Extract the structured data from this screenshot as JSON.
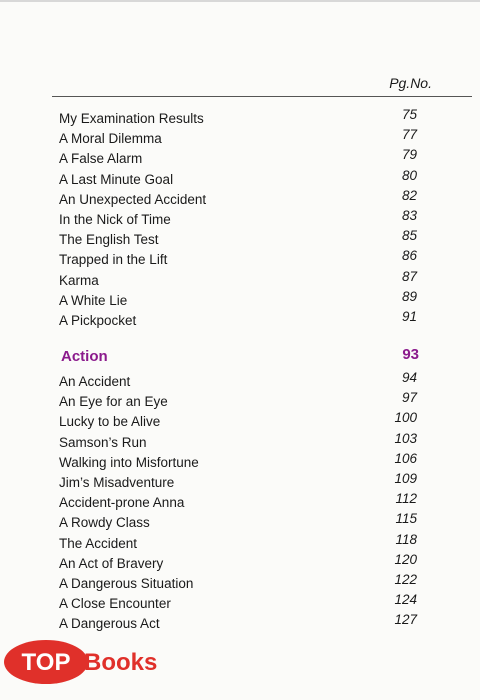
{
  "header": {
    "page_column": "Pg.No."
  },
  "entries": [
    {
      "title": "My Examination Results",
      "page": 75
    },
    {
      "title": "A Moral Dilemma",
      "page": 77
    },
    {
      "title": "A False Alarm",
      "page": 79
    },
    {
      "title": "A Last Minute Goal",
      "page": 80
    },
    {
      "title": "An Unexpected Accident",
      "page": 82
    },
    {
      "title": "In the Nick of Time",
      "page": 83
    },
    {
      "title": "The English Test",
      "page": 85
    },
    {
      "title": "Trapped in the Lift",
      "page": 86
    },
    {
      "title": "Karma",
      "page": 87
    },
    {
      "title": "A White Lie",
      "page": 89
    },
    {
      "title": "A Pickpocket",
      "page": 91
    }
  ],
  "section": {
    "title": "Action",
    "page": 93,
    "entries": [
      {
        "title": "An Accident",
        "page": 94
      },
      {
        "title": "An Eye for an Eye",
        "page": 97
      },
      {
        "title": "Lucky to be Alive",
        "page": 100
      },
      {
        "title": "Samson’s Run",
        "page": 103
      },
      {
        "title": "Walking into Misfortune",
        "page": 106
      },
      {
        "title": "Jim’s Misadventure",
        "page": 109
      },
      {
        "title": "Accident-prone Anna",
        "page": 112
      },
      {
        "title": "A Rowdy Class",
        "page": 115
      },
      {
        "title": "The Accident",
        "page": 118
      },
      {
        "title": "An Act of Bravery",
        "page": 120
      },
      {
        "title": "A Dangerous Situation",
        "page": 122
      },
      {
        "title": "A Close Encounter",
        "page": 124
      },
      {
        "title": "A Dangerous Act",
        "page": 127
      }
    ]
  },
  "watermark": {
    "logo": "TOP",
    "text": "Books"
  }
}
